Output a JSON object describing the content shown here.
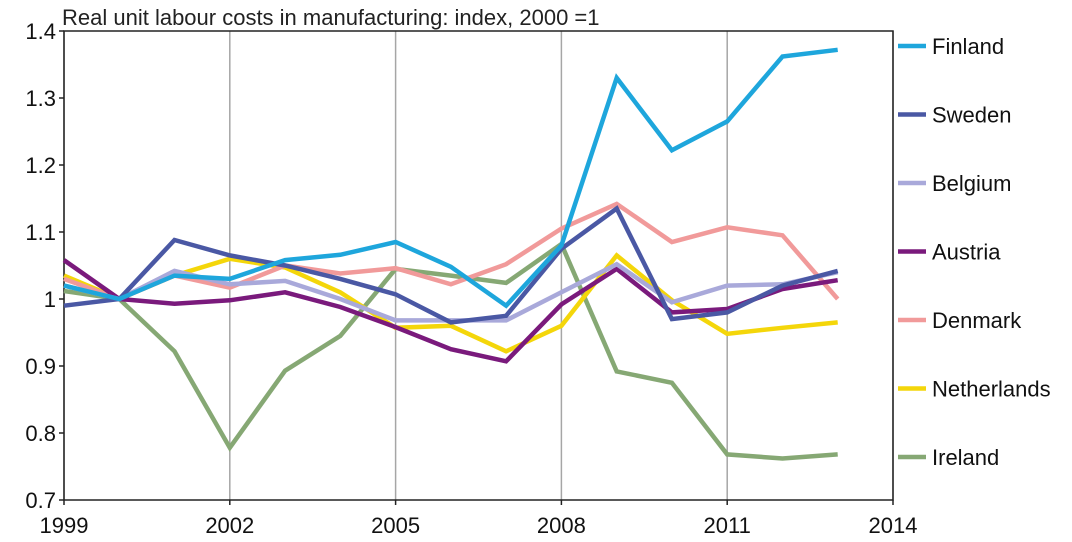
{
  "chart_data": {
    "type": "line",
    "title": "Real unit labour costs in manufacturing: index, 2000 =1",
    "xlabel": "",
    "ylabel": "",
    "x": [
      1999,
      2000,
      2001,
      2002,
      2003,
      2004,
      2005,
      2006,
      2007,
      2008,
      2009,
      2010,
      2011,
      2012,
      2013
    ],
    "xlim": [
      1999,
      2014
    ],
    "ylim": [
      0.7,
      1.4
    ],
    "x_ticks": [
      1999,
      2002,
      2005,
      2008,
      2011,
      2014
    ],
    "x_tick_labels": [
      "1999",
      "2002",
      "2005",
      "2008",
      "2011",
      "2014"
    ],
    "y_ticks": [
      0.7,
      0.8,
      0.9,
      1.0,
      1.1,
      1.2,
      1.3,
      1.4
    ],
    "y_tick_labels": [
      "0.7",
      "0.8",
      "0.9",
      "1",
      "1.1",
      "1.2",
      "1.3",
      "1.4"
    ],
    "grid": "vertical",
    "legend_placement": "right",
    "series": [
      {
        "name": "Finland",
        "color": "#1ea6dc",
        "values": [
          1.02,
          1.0,
          1.035,
          1.03,
          1.058,
          1.066,
          1.085,
          1.048,
          0.99,
          1.08,
          1.33,
          1.222,
          1.265,
          1.362,
          1.372
        ]
      },
      {
        "name": "Sweden",
        "color": "#4a58a4",
        "values": [
          0.99,
          1.0,
          1.088,
          1.065,
          1.05,
          1.03,
          1.007,
          0.965,
          0.975,
          1.075,
          1.135,
          0.97,
          0.98,
          1.02,
          1.042
        ]
      },
      {
        "name": "Belgium",
        "color": "#a9a9da",
        "values": [
          1.02,
          1.0,
          1.042,
          1.022,
          1.027,
          1.0,
          0.968,
          0.968,
          0.968,
          1.01,
          1.052,
          0.995,
          1.02,
          1.022,
          1.04
        ]
      },
      {
        "name": "Austria",
        "color": "#7a1a7c",
        "values": [
          1.058,
          1.0,
          0.993,
          0.998,
          1.01,
          0.988,
          0.958,
          0.925,
          0.907,
          0.992,
          1.045,
          0.98,
          0.985,
          1.015,
          1.028
        ]
      },
      {
        "name": "Denmark",
        "color": "#f19a9a",
        "values": [
          1.03,
          1.0,
          1.035,
          1.017,
          1.05,
          1.038,
          1.046,
          1.022,
          1.052,
          1.105,
          1.142,
          1.085,
          1.107,
          1.095,
          1.0
        ]
      },
      {
        "name": "Netherlands",
        "color": "#f4d60a",
        "values": [
          1.035,
          1.0,
          1.035,
          1.06,
          1.047,
          1.01,
          0.957,
          0.96,
          0.922,
          0.96,
          1.065,
          0.998,
          0.948,
          0.957,
          0.965
        ]
      },
      {
        "name": "Ireland",
        "color": "#86a874",
        "values": [
          1.012,
          1.0,
          0.922,
          0.778,
          0.893,
          0.945,
          1.045,
          1.035,
          1.024,
          1.082,
          0.892,
          0.875,
          0.768,
          0.762,
          0.768
        ]
      }
    ]
  }
}
